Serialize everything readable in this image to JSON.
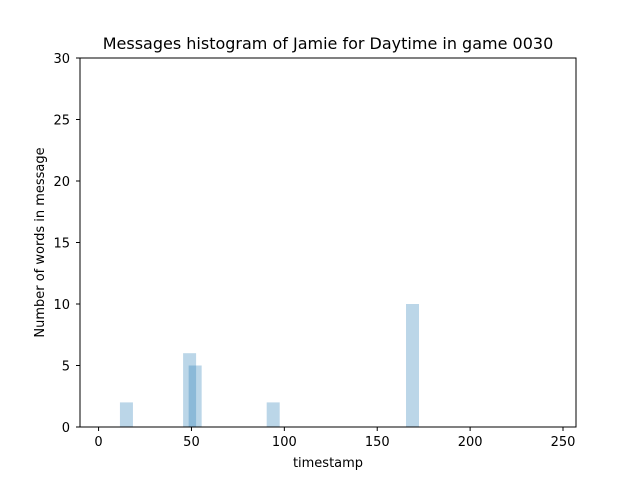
{
  "chart_data": {
    "type": "bar",
    "title": "Messages histogram of Jamie for Daytime in game 0030",
    "xlabel": "timestamp",
    "ylabel": "Number of words in message",
    "xlim": [
      -10,
      257
    ],
    "ylim": [
      0,
      30
    ],
    "xticks": [
      0,
      50,
      100,
      150,
      200,
      250
    ],
    "yticks": [
      0,
      5,
      10,
      15,
      20,
      25,
      30
    ],
    "grid": false,
    "bar_color": "#1f77b4",
    "bar_opacity": 0.3,
    "bar_width": 7,
    "bars": [
      {
        "x": 15,
        "value": 2
      },
      {
        "x": 49,
        "value": 6
      },
      {
        "x": 52,
        "value": 5
      },
      {
        "x": 94,
        "value": 2
      },
      {
        "x": 169,
        "value": 10
      }
    ]
  }
}
